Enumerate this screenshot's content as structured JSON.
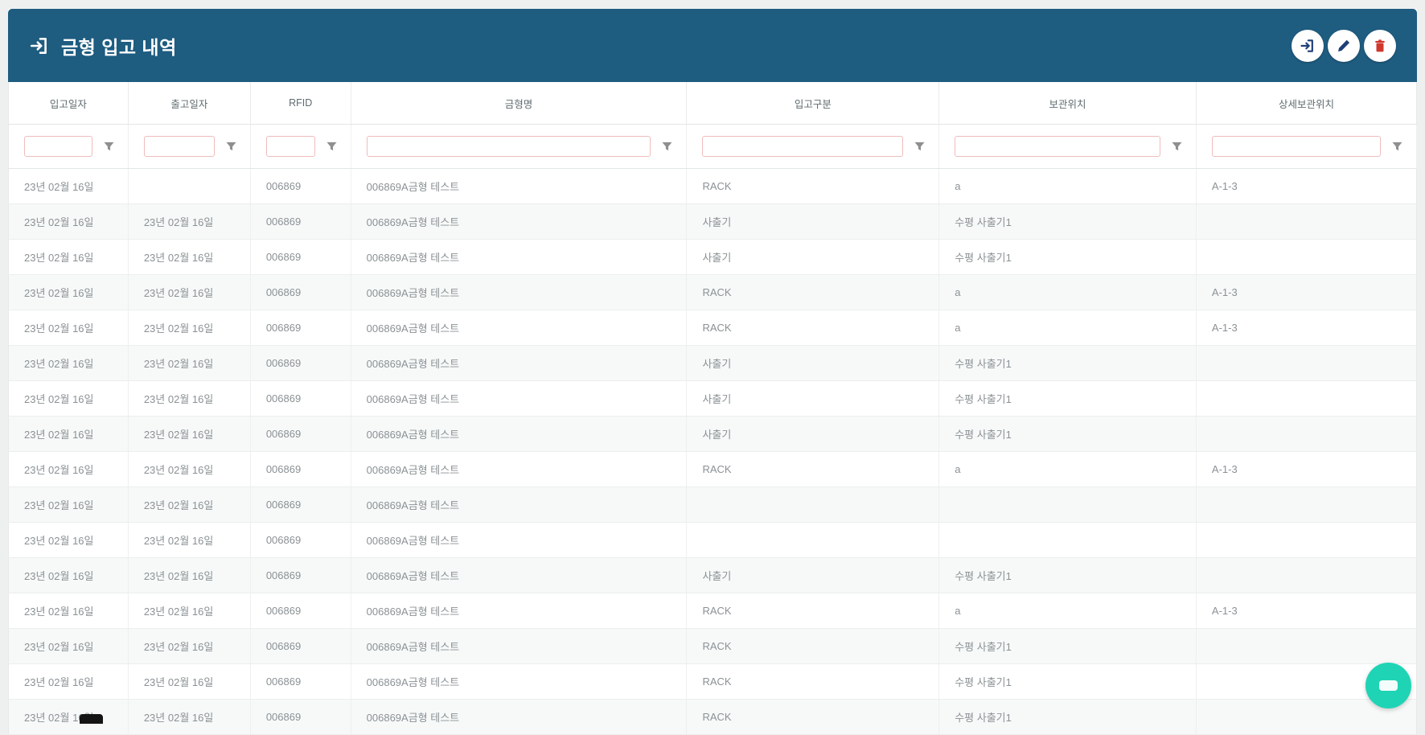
{
  "header": {
    "title": "금형 입고 내역",
    "title_icon": "sign-in-icon",
    "bg_color": "#1e5c80",
    "actions": [
      {
        "name": "receive",
        "icon": "sign-in-icon",
        "icon_color": "#1f3f77"
      },
      {
        "name": "edit",
        "icon": "pencil-icon",
        "icon_color": "#1f3f77"
      },
      {
        "name": "delete",
        "icon": "trash-icon",
        "icon_color": "#cf382d"
      }
    ]
  },
  "table": {
    "columns": [
      {
        "key": "in-date",
        "label": "입고일자",
        "width": "8.5%"
      },
      {
        "key": "out-date",
        "label": "출고일자",
        "width": "8.68%"
      },
      {
        "key": "rfid",
        "label": "RFID",
        "width": "7.13%"
      },
      {
        "key": "mold-name",
        "label": "금형명",
        "width": "23.86%"
      },
      {
        "key": "in-type",
        "label": "입고구분",
        "width": "17.92%"
      },
      {
        "key": "location",
        "label": "보관위치",
        "width": "18.26%"
      },
      {
        "key": "location-detail",
        "label": "상세보관위치",
        "width": "15.65%"
      }
    ],
    "filter_values": [
      "",
      "",
      "",
      "",
      "",
      "",
      ""
    ],
    "rows": [
      [
        "23년 02월 16일",
        "",
        "006869",
        "006869A금형 테스트",
        "RACK",
        "a",
        "A-1-3"
      ],
      [
        "23년 02월 16일",
        "23년 02월 16일",
        "006869",
        "006869A금형 테스트",
        "사출기",
        "수평 사출기1",
        ""
      ],
      [
        "23년 02월 16일",
        "23년 02월 16일",
        "006869",
        "006869A금형 테스트",
        "사출기",
        "수평 사출기1",
        ""
      ],
      [
        "23년 02월 16일",
        "23년 02월 16일",
        "006869",
        "006869A금형 테스트",
        "RACK",
        "a",
        "A-1-3"
      ],
      [
        "23년 02월 16일",
        "23년 02월 16일",
        "006869",
        "006869A금형 테스트",
        "RACK",
        "a",
        "A-1-3"
      ],
      [
        "23년 02월 16일",
        "23년 02월 16일",
        "006869",
        "006869A금형 테스트",
        "사출기",
        "수평 사출기1",
        ""
      ],
      [
        "23년 02월 16일",
        "23년 02월 16일",
        "006869",
        "006869A금형 테스트",
        "사출기",
        "수평 사출기1",
        ""
      ],
      [
        "23년 02월 16일",
        "23년 02월 16일",
        "006869",
        "006869A금형 테스트",
        "사출기",
        "수평 사출기1",
        ""
      ],
      [
        "23년 02월 16일",
        "23년 02월 16일",
        "006869",
        "006869A금형 테스트",
        "RACK",
        "a",
        "A-1-3"
      ],
      [
        "23년 02월 16일",
        "23년 02월 16일",
        "006869",
        "006869A금형 테스트",
        "",
        "",
        ""
      ],
      [
        "23년 02월 16일",
        "23년 02월 16일",
        "006869",
        "006869A금형 테스트",
        "",
        "",
        ""
      ],
      [
        "23년 02월 16일",
        "23년 02월 16일",
        "006869",
        "006869A금형 테스트",
        "사출기",
        "수평 사출기1",
        ""
      ],
      [
        "23년 02월 16일",
        "23년 02월 16일",
        "006869",
        "006869A금형 테스트",
        "RACK",
        "a",
        "A-1-3"
      ],
      [
        "23년 02월 16일",
        "23년 02월 16일",
        "006869",
        "006869A금형 테스트",
        "RACK",
        "수평 사출기1",
        ""
      ],
      [
        "23년 02월 16일",
        "23년 02월 16일",
        "006869",
        "006869A금형 테스트",
        "RACK",
        "수평 사출기1",
        ""
      ],
      [
        "23년 02월 16일",
        "23년 02월 16일",
        "006869",
        "006869A금형 테스트",
        "RACK",
        "수평 사출기1",
        ""
      ]
    ]
  },
  "fab": {
    "icon": "minus-icon",
    "color": "#1fd4b5"
  },
  "colors": {
    "header_bg": "#1e5c80",
    "filter_border": "#f0bcbc",
    "delete_red": "#cf382d",
    "icon_navy": "#1f3f77",
    "fab_teal": "#1fd4b5",
    "page_bg": "#eef0f0"
  }
}
